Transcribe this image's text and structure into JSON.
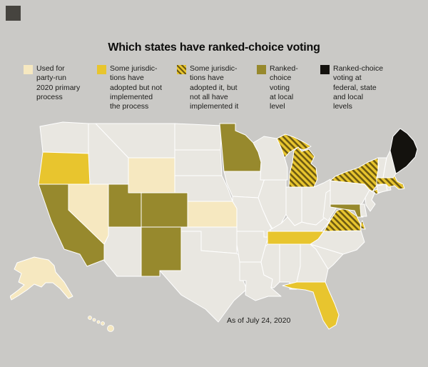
{
  "title": "Which states have ranked-choice voting",
  "legend": [
    {
      "key": "primary",
      "label": "Used for\nparty-run\n2020 primary\nprocess",
      "color": "#f6e8c0",
      "pattern": false
    },
    {
      "key": "adopted_not_implemented",
      "label": "Some jurisdic-\ntions have\nadopted but not\nimplemented\nthe process",
      "color": "#e8c52e",
      "pattern": false
    },
    {
      "key": "adopted_partial",
      "label": "Some jurisdic-\ntions have\nadopted it, but\nnot all have\nimplemented it",
      "color": "#e8c52e",
      "pattern": true
    },
    {
      "key": "local",
      "label": "Ranked-\nchoice\nvoting\nat local\nlevel",
      "color": "#97892d",
      "pattern": false
    },
    {
      "key": "federal_state_local",
      "label": "Ranked-choice\nvoting at\nfederal, state\nand local\nlevels",
      "color": "#14120e",
      "pattern": false
    }
  ],
  "map": {
    "note": "As of July 24, 2020",
    "default_fill": "#e9e7e1",
    "border_color": "#ffffff",
    "background": "#cac9c6",
    "stripe_line_color": "#6d5a11",
    "states": {
      "Alaska": "primary",
      "Hawaii": "primary",
      "Nevada": "primary",
      "Wyoming": "primary",
      "Kansas": "primary",
      "Oregon": "adopted_not_implemented",
      "Tennessee": "adopted_not_implemented",
      "Florida": "adopted_not_implemented",
      "Michigan": "adopted_partial",
      "New York": "adopted_partial",
      "Massachusetts": "adopted_partial",
      "Virginia": "adopted_partial",
      "California": "local",
      "Utah": "local",
      "Colorado": "local",
      "New Mexico": "local",
      "Minnesota": "local",
      "Maryland": "local",
      "Maine": "federal_state_local"
    }
  }
}
